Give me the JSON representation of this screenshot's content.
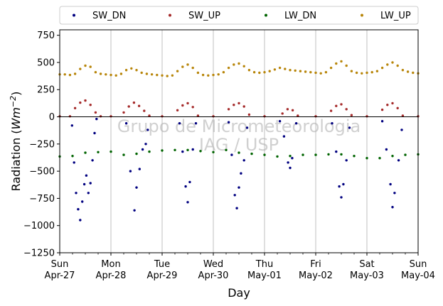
{
  "chart_data": {
    "type": "scatter",
    "xlabel": "Day",
    "ylabel": "Radiation (Wm⁻²)",
    "ylabel_main": "Radiation (",
    "ylabel_unit": "Wm",
    "ylabel_exp": "−2",
    "ylabel_close": ")",
    "xlim": [
      0,
      7
    ],
    "ylim": [
      -1250,
      800
    ],
    "yticks": [
      -1250,
      -1000,
      -750,
      -500,
      -250,
      0,
      250,
      500,
      750
    ],
    "ytick_labels": [
      "−1250",
      "−1000",
      "−750",
      "−500",
      "−250",
      "0",
      "250",
      "500",
      "750"
    ],
    "xticks": [
      0,
      1,
      2,
      3,
      4,
      5,
      6,
      7
    ],
    "xtick_labels": [
      [
        "Sun",
        "Apr-27"
      ],
      [
        "Mon",
        "Apr-28"
      ],
      [
        "Tue",
        "Apr-29"
      ],
      [
        "Wed",
        "Apr-30"
      ],
      [
        "Thu",
        "May-01"
      ],
      [
        "Fri",
        "May-02"
      ],
      [
        "Sat",
        "May-03"
      ],
      [
        "Sun",
        "May-04"
      ]
    ],
    "grid": "vertical",
    "zero_line": 0,
    "legend_position": "top, above plot",
    "watermark": [
      "Grupo de Micrometeorologia",
      "IAG / USP"
    ],
    "series": [
      {
        "name": "SW_DN",
        "color": "#000080",
        "daily_min": [
          -950,
          -870,
          -790,
          -840,
          -470,
          -750,
          -830
        ],
        "x": [
          0.24,
          0.28,
          0.32,
          0.36,
          0.4,
          0.44,
          0.48,
          0.52,
          0.56,
          0.6,
          0.64,
          0.68,
          0.72,
          1.3,
          1.38,
          1.46,
          1.5,
          1.56,
          1.62,
          1.68,
          1.72,
          2.34,
          2.4,
          2.46,
          2.5,
          2.54,
          2.6,
          2.66,
          3.3,
          3.36,
          3.42,
          3.46,
          3.5,
          3.54,
          3.6,
          3.66,
          4.3,
          4.38,
          4.46,
          4.5,
          4.54,
          4.62,
          5.32,
          5.4,
          5.46,
          5.5,
          5.54,
          5.6,
          5.66,
          6.3,
          6.38,
          6.46,
          6.5,
          6.54,
          6.62,
          6.68
        ],
        "y": [
          -80,
          -420,
          -700,
          -850,
          -950,
          -780,
          -620,
          -540,
          -700,
          -610,
          -400,
          -150,
          -20,
          -60,
          -500,
          -860,
          -650,
          -480,
          -300,
          -250,
          -120,
          -60,
          -320,
          -640,
          -785,
          -600,
          -300,
          -60,
          -50,
          -350,
          -720,
          -840,
          -650,
          -520,
          -400,
          -100,
          -40,
          -180,
          -420,
          -470,
          -380,
          -60,
          -60,
          -320,
          -640,
          -740,
          -620,
          -400,
          -100,
          -40,
          -300,
          -620,
          -830,
          -700,
          -400,
          -120
        ]
      },
      {
        "name": "SW_UP",
        "color": "#a52a2a",
        "x": [
          0.0,
          0.2,
          0.3,
          0.4,
          0.5,
          0.6,
          0.7,
          0.8,
          1.0,
          1.25,
          1.35,
          1.45,
          1.55,
          1.65,
          1.75,
          2.0,
          2.3,
          2.4,
          2.5,
          2.6,
          2.7,
          3.0,
          3.3,
          3.4,
          3.5,
          3.6,
          3.7,
          4.0,
          4.35,
          4.45,
          4.55,
          4.65,
          5.0,
          5.3,
          5.4,
          5.5,
          5.6,
          5.7,
          6.0,
          6.3,
          6.4,
          6.5,
          6.6,
          6.7,
          7.0
        ],
        "y": [
          5,
          5,
          80,
          130,
          150,
          110,
          40,
          5,
          5,
          40,
          95,
          130,
          100,
          55,
          10,
          5,
          60,
          105,
          125,
          90,
          10,
          5,
          70,
          110,
          125,
          95,
          20,
          5,
          30,
          70,
          60,
          10,
          5,
          55,
          100,
          115,
          70,
          15,
          5,
          65,
          110,
          125,
          80,
          10,
          5
        ]
      },
      {
        "name": "LW_DN",
        "color": "#006400",
        "x": [
          0.0,
          0.25,
          0.5,
          0.75,
          1.0,
          1.25,
          1.5,
          1.75,
          2.0,
          2.25,
          2.5,
          2.75,
          3.0,
          3.25,
          3.5,
          3.75,
          4.0,
          4.25,
          4.5,
          4.75,
          5.0,
          5.25,
          5.5,
          5.75,
          6.0,
          6.25,
          6.5,
          6.75,
          7.0
        ],
        "y": [
          -365,
          -360,
          -330,
          -325,
          -320,
          -350,
          -340,
          -320,
          -310,
          -305,
          -305,
          -315,
          -325,
          -305,
          -330,
          -340,
          -350,
          -365,
          -360,
          -350,
          -350,
          -345,
          -345,
          -360,
          -380,
          -380,
          -360,
          -350,
          -345
        ]
      },
      {
        "name": "LW_UP",
        "color": "#b8860b",
        "x": [
          0.0,
          0.1,
          0.2,
          0.3,
          0.4,
          0.5,
          0.6,
          0.7,
          0.8,
          0.9,
          1.0,
          1.1,
          1.2,
          1.3,
          1.4,
          1.5,
          1.6,
          1.7,
          1.8,
          1.9,
          2.0,
          2.1,
          2.2,
          2.3,
          2.4,
          2.5,
          2.6,
          2.7,
          2.8,
          2.9,
          3.0,
          3.1,
          3.2,
          3.3,
          3.4,
          3.5,
          3.6,
          3.7,
          3.8,
          3.9,
          4.0,
          4.1,
          4.2,
          4.3,
          4.4,
          4.5,
          4.6,
          4.7,
          4.8,
          4.9,
          5.0,
          5.1,
          5.2,
          5.3,
          5.4,
          5.5,
          5.6,
          5.7,
          5.8,
          5.9,
          6.0,
          6.1,
          6.2,
          6.3,
          6.4,
          6.5,
          6.6,
          6.7,
          6.8,
          6.9,
          7.0
        ],
        "y": [
          390,
          390,
          385,
          395,
          440,
          470,
          460,
          410,
          395,
          390,
          385,
          380,
          395,
          430,
          445,
          430,
          405,
          395,
          390,
          385,
          380,
          375,
          380,
          420,
          460,
          480,
          450,
          405,
          385,
          380,
          385,
          390,
          410,
          450,
          480,
          490,
          465,
          430,
          410,
          405,
          410,
          420,
          435,
          450,
          440,
          430,
          425,
          420,
          415,
          410,
          405,
          400,
          410,
          450,
          490,
          510,
          470,
          420,
          405,
          400,
          405,
          410,
          420,
          450,
          480,
          500,
          470,
          430,
          415,
          405,
          400
        ]
      }
    ]
  }
}
